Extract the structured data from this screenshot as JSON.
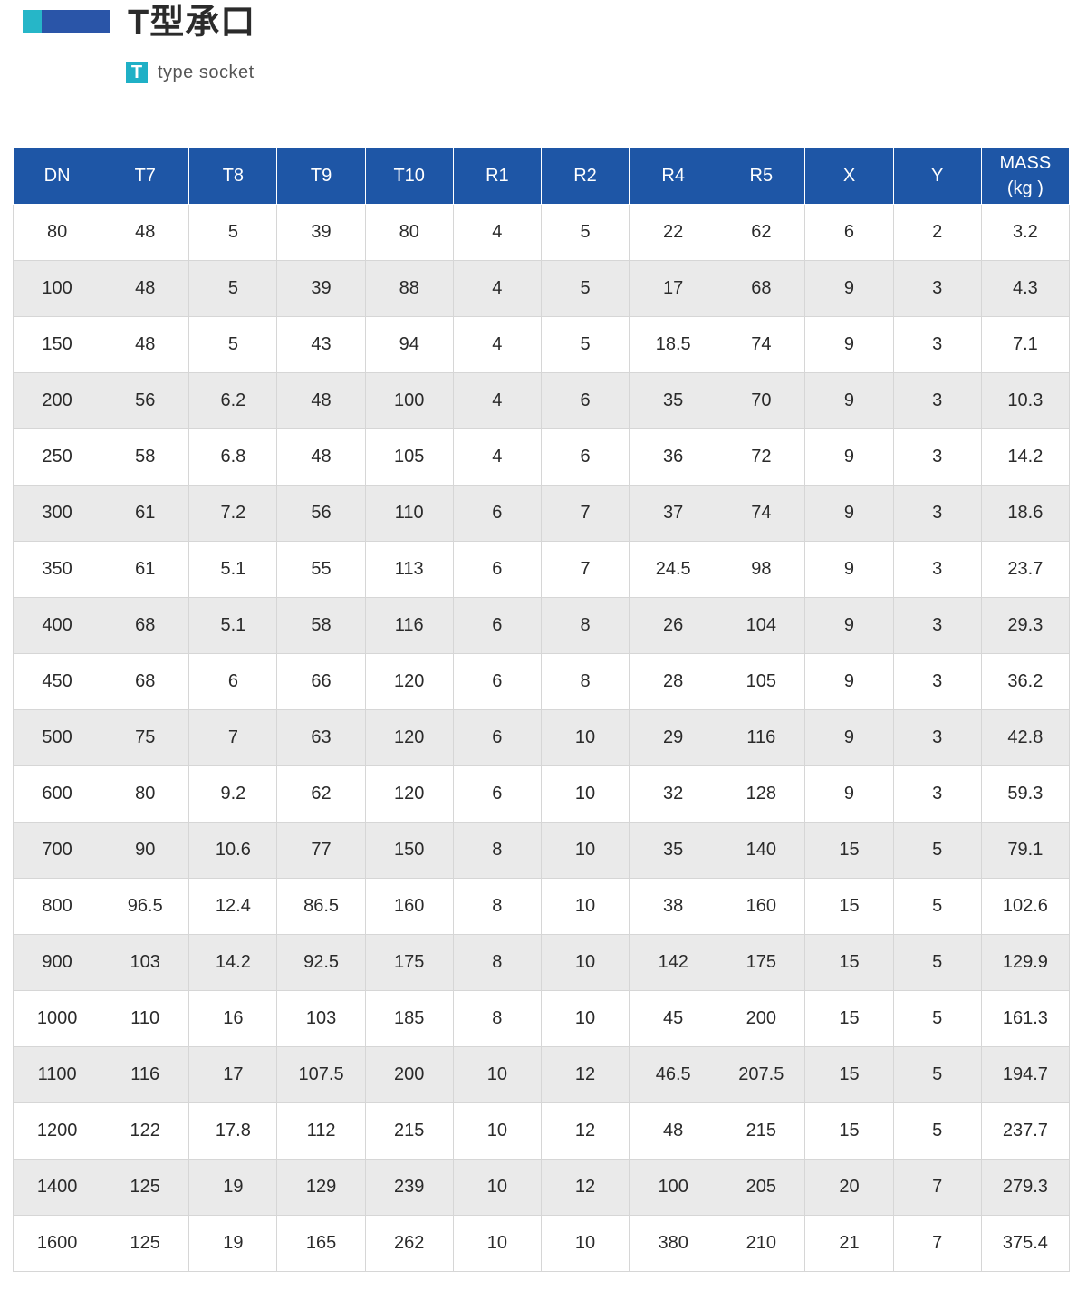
{
  "header": {
    "title": "T型承口",
    "badge_letter": "T",
    "subtitle": "type socket"
  },
  "colors": {
    "accent_cyan": "#26b6c8",
    "accent_blue": "#2a55a8",
    "header_bg": "#1e56a6",
    "stripe_bg": "#eaeaea"
  },
  "table": {
    "columns": [
      [
        "DN"
      ],
      [
        "T7"
      ],
      [
        "T8"
      ],
      [
        "T9"
      ],
      [
        "T10"
      ],
      [
        "R1"
      ],
      [
        "R2"
      ],
      [
        "R4"
      ],
      [
        "R5"
      ],
      [
        "X"
      ],
      [
        "Y"
      ],
      [
        "MASS",
        "(kg )"
      ]
    ],
    "rows": [
      [
        "80",
        "48",
        "5",
        "39",
        "80",
        "4",
        "5",
        "22",
        "62",
        "6",
        "2",
        "3.2"
      ],
      [
        "100",
        "48",
        "5",
        "39",
        "88",
        "4",
        "5",
        "17",
        "68",
        "9",
        "3",
        "4.3"
      ],
      [
        "150",
        "48",
        "5",
        "43",
        "94",
        "4",
        "5",
        "18.5",
        "74",
        "9",
        "3",
        "7.1"
      ],
      [
        "200",
        "56",
        "6.2",
        "48",
        "100",
        "4",
        "6",
        "35",
        "70",
        "9",
        "3",
        "10.3"
      ],
      [
        "250",
        "58",
        "6.8",
        "48",
        "105",
        "4",
        "6",
        "36",
        "72",
        "9",
        "3",
        "14.2"
      ],
      [
        "300",
        "61",
        "7.2",
        "56",
        "110",
        "6",
        "7",
        "37",
        "74",
        "9",
        "3",
        "18.6"
      ],
      [
        "350",
        "61",
        "5.1",
        "55",
        "113",
        "6",
        "7",
        "24.5",
        "98",
        "9",
        "3",
        "23.7"
      ],
      [
        "400",
        "68",
        "5.1",
        "58",
        "116",
        "6",
        "8",
        "26",
        "104",
        "9",
        "3",
        "29.3"
      ],
      [
        "450",
        "68",
        "6",
        "66",
        "120",
        "6",
        "8",
        "28",
        "105",
        "9",
        "3",
        "36.2"
      ],
      [
        "500",
        "75",
        "7",
        "63",
        "120",
        "6",
        "10",
        "29",
        "116",
        "9",
        "3",
        "42.8"
      ],
      [
        "600",
        "80",
        "9.2",
        "62",
        "120",
        "6",
        "10",
        "32",
        "128",
        "9",
        "3",
        "59.3"
      ],
      [
        "700",
        "90",
        "10.6",
        "77",
        "150",
        "8",
        "10",
        "35",
        "140",
        "15",
        "5",
        "79.1"
      ],
      [
        "800",
        "96.5",
        "12.4",
        "86.5",
        "160",
        "8",
        "10",
        "38",
        "160",
        "15",
        "5",
        "102.6"
      ],
      [
        "900",
        "103",
        "14.2",
        "92.5",
        "175",
        "8",
        "10",
        "142",
        "175",
        "15",
        "5",
        "129.9"
      ],
      [
        "1000",
        "110",
        "16",
        "103",
        "185",
        "8",
        "10",
        "45",
        "200",
        "15",
        "5",
        "161.3"
      ],
      [
        "1100",
        "116",
        "17",
        "107.5",
        "200",
        "10",
        "12",
        "46.5",
        "207.5",
        "15",
        "5",
        "194.7"
      ],
      [
        "1200",
        "122",
        "17.8",
        "112",
        "215",
        "10",
        "12",
        "48",
        "215",
        "15",
        "5",
        "237.7"
      ],
      [
        "1400",
        "125",
        "19",
        "129",
        "239",
        "10",
        "12",
        "100",
        "205",
        "20",
        "7",
        "279.3"
      ],
      [
        "1600",
        "125",
        "19",
        "165",
        "262",
        "10",
        "10",
        "380",
        "210",
        "21",
        "7",
        "375.4"
      ]
    ]
  }
}
